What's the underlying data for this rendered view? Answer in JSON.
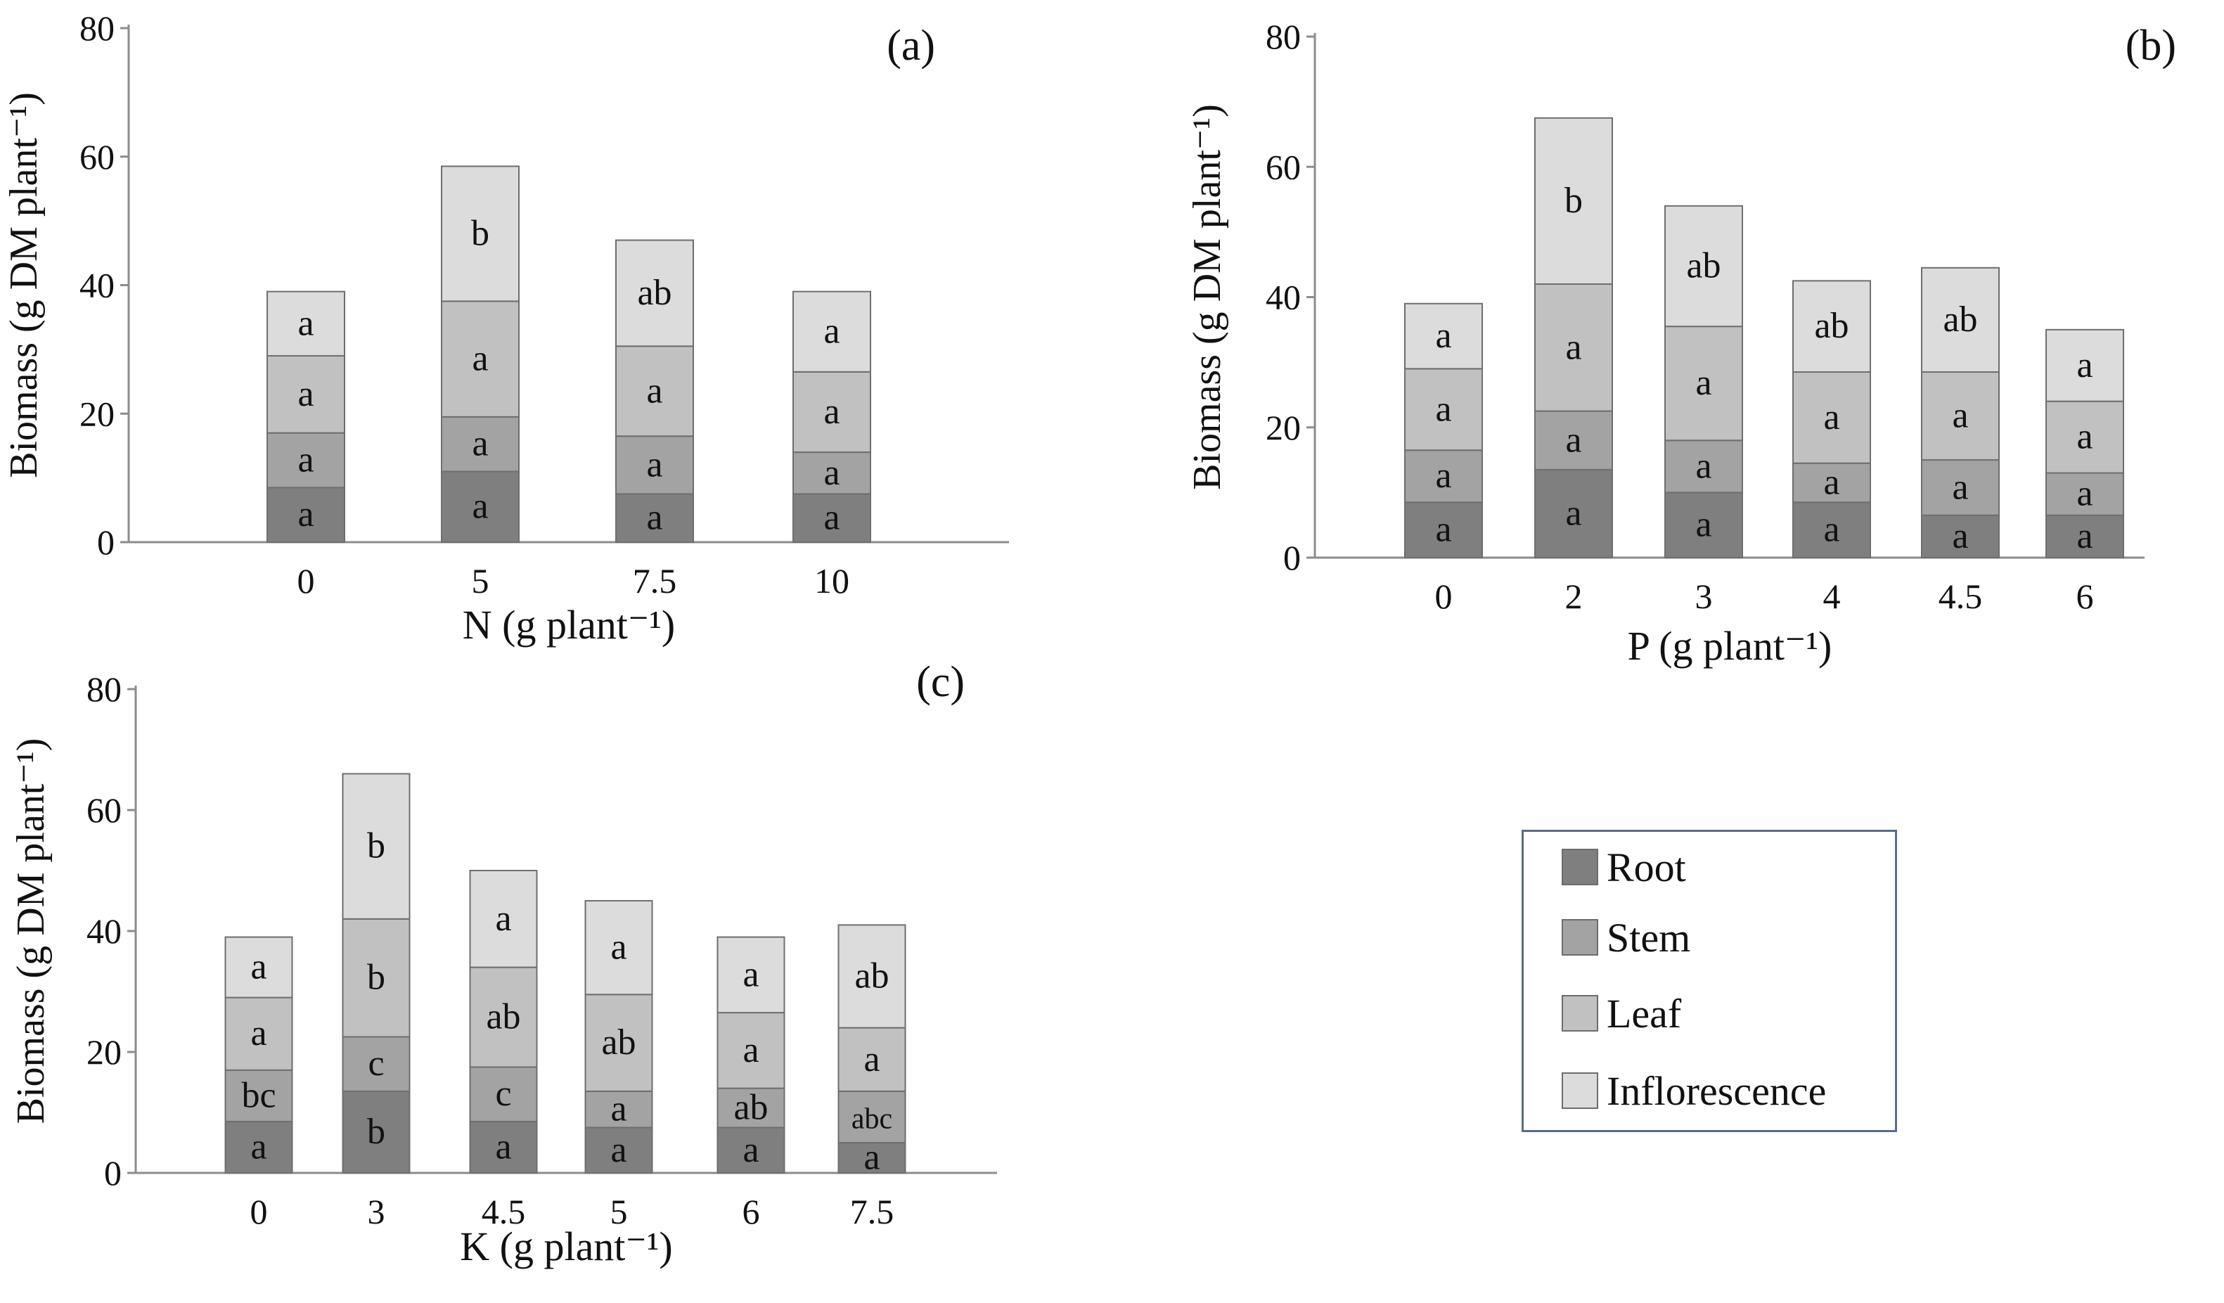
{
  "chart_data": [
    {
      "type": "bar",
      "stacked": true,
      "panel_label": "(a)",
      "xlabel": "N (g plant⁻¹)",
      "ylabel": "Biomass (g DM plant⁻¹)",
      "ylim": [
        0,
        80
      ],
      "yticks": [
        "0",
        "20",
        "40",
        "60",
        "80"
      ],
      "categories": [
        "0",
        "5",
        "7.5",
        "10"
      ],
      "series": [
        {
          "name": "Root",
          "values": [
            8.5,
            11,
            7.5,
            7.5
          ],
          "letters": [
            "a",
            "a",
            "a",
            "a"
          ]
        },
        {
          "name": "Stem",
          "values": [
            8.5,
            8.5,
            9,
            6.5
          ],
          "letters": [
            "a",
            "a",
            "a",
            "a"
          ]
        },
        {
          "name": "Leaf",
          "values": [
            12,
            18,
            14,
            12.5
          ],
          "letters": [
            "a",
            "a",
            "a",
            "a"
          ]
        },
        {
          "name": "Inflorescence",
          "values": [
            10,
            21,
            16.5,
            12.5
          ],
          "letters": [
            "a",
            "b",
            "ab",
            "a"
          ]
        }
      ]
    },
    {
      "type": "bar",
      "stacked": true,
      "panel_label": "(b)",
      "xlabel": "P (g plant⁻¹)",
      "ylabel": "Biomass (g DM plant⁻¹)",
      "ylim": [
        0,
        80
      ],
      "yticks": [
        "0",
        "20",
        "40",
        "60",
        "80"
      ],
      "categories": [
        "0",
        "2",
        "3",
        "4",
        "4.5",
        "6"
      ],
      "series": [
        {
          "name": "Root",
          "values": [
            8.5,
            13.5,
            10,
            8.5,
            6.5,
            6.5
          ],
          "letters": [
            "a",
            "a",
            "a",
            "a",
            "a",
            "a"
          ]
        },
        {
          "name": "Stem",
          "values": [
            8,
            9,
            8,
            6,
            8.5,
            6.5
          ],
          "letters": [
            "a",
            "a",
            "a",
            "a",
            "a",
            "a"
          ]
        },
        {
          "name": "Leaf",
          "values": [
            12.5,
            19.5,
            17.5,
            14,
            13.5,
            11
          ],
          "letters": [
            "a",
            "a",
            "a",
            "a",
            "a",
            "a"
          ]
        },
        {
          "name": "Inflorescence",
          "values": [
            10,
            25.5,
            18.5,
            14,
            16,
            11
          ],
          "letters": [
            "a",
            "b",
            "ab",
            "ab",
            "ab",
            "a"
          ]
        }
      ]
    },
    {
      "type": "bar",
      "stacked": true,
      "panel_label": "(c)",
      "xlabel": "K (g plant⁻¹)",
      "ylabel": "Biomass (g DM plant⁻¹)",
      "ylim": [
        0,
        80
      ],
      "yticks": [
        "0",
        "20",
        "40",
        "60",
        "80"
      ],
      "categories": [
        "0",
        "3",
        "4.5",
        "5",
        "6",
        "7.5"
      ],
      "series": [
        {
          "name": "Root",
          "values": [
            8.5,
            13.5,
            8.5,
            7.5,
            7.5,
            5
          ],
          "letters": [
            "a",
            "b",
            "a",
            "a",
            "a",
            "a"
          ]
        },
        {
          "name": "Stem",
          "values": [
            8.5,
            9,
            9,
            6,
            6.5,
            8.5
          ],
          "letters": [
            "bc",
            "c",
            "c",
            "a",
            "ab",
            "abc"
          ]
        },
        {
          "name": "Leaf",
          "values": [
            12,
            19.5,
            16.5,
            16,
            12.5,
            10.5
          ],
          "letters": [
            "a",
            "b",
            "ab",
            "ab",
            "a",
            "a"
          ]
        },
        {
          "name": "Inflorescence",
          "values": [
            10,
            24,
            16,
            15.5,
            12.5,
            17
          ],
          "letters": [
            "a",
            "b",
            "a",
            "a",
            "a",
            "ab"
          ]
        }
      ]
    }
  ],
  "colors": {
    "Root": "#7f7f7f",
    "Stem": "#a3a3a3",
    "Leaf": "#c1c1c1",
    "Inflorescence": "#dcdcdc",
    "axis": "#8c8c8c",
    "bar_outline": "#6e6e6e",
    "text": "#111111"
  },
  "legend": {
    "items": [
      {
        "label": "Root",
        "color": "#7f7f7f"
      },
      {
        "label": "Stem",
        "color": "#a3a3a3"
      },
      {
        "label": "Leaf",
        "color": "#c1c1c1"
      },
      {
        "label": "Inflorescence",
        "color": "#dcdcdc"
      }
    ]
  }
}
